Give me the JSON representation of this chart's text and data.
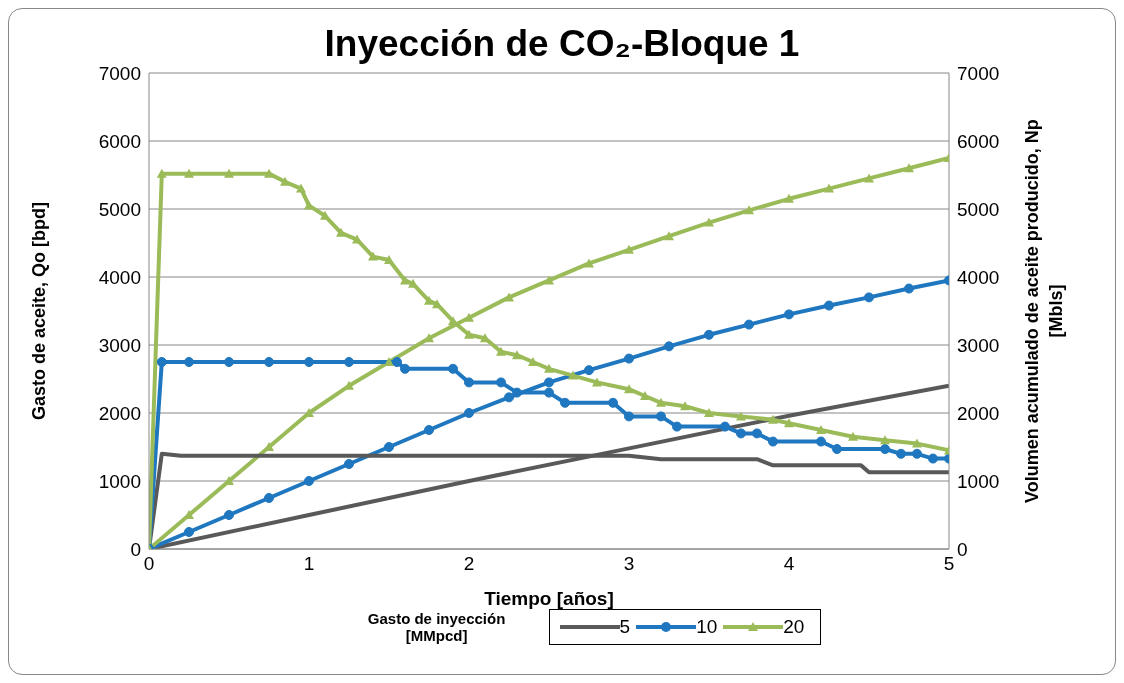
{
  "chart_data": {
    "type": "line",
    "title": "Inyección de CO₂-Bloque 1",
    "xlabel": "Tiempo [años]",
    "ylabel": "Gasto de aceite, Qo [bpd]",
    "y2label": "Volumen acumulado de aceite producido, Np [Mbls]",
    "legend_title": "Gasto de inyección [MMpcd]",
    "legend": "bottom",
    "grid": "y",
    "xlim": [
      0,
      5
    ],
    "xticks": [
      0,
      1,
      2,
      3,
      4,
      5
    ],
    "ylim": [
      0,
      7000
    ],
    "yticks": [
      0,
      1000,
      2000,
      3000,
      4000,
      5000,
      6000,
      7000
    ],
    "y2lim": [
      0,
      7000
    ],
    "y2ticks": [
      0,
      1000,
      2000,
      3000,
      4000,
      5000,
      6000,
      7000
    ],
    "line_style": "solid",
    "series": [
      {
        "name": "5",
        "color": "#595959",
        "marker": "none",
        "x": [
          0,
          0.08,
          0.2,
          1,
          2,
          3,
          3.2,
          3.8,
          3.9,
          4.45,
          4.5,
          5
        ],
        "values": [
          0,
          1400,
          1370,
          1370,
          1370,
          1370,
          1320,
          1320,
          1230,
          1230,
          1130,
          1130
        ]
      },
      {
        "name": "10",
        "color": "#1f77c0",
        "marker": "circle",
        "x": [
          0,
          0.08,
          0.25,
          0.5,
          0.75,
          1,
          1.25,
          1.55,
          1.6,
          1.9,
          2,
          2.2,
          2.3,
          2.5,
          2.6,
          2.9,
          3,
          3.2,
          3.3,
          3.6,
          3.7,
          3.8,
          3.9,
          4.2,
          4.3,
          4.6,
          4.7,
          4.8,
          4.9,
          5
        ],
        "values": [
          0,
          2750,
          2750,
          2750,
          2750,
          2750,
          2750,
          2750,
          2650,
          2650,
          2450,
          2450,
          2300,
          2300,
          2150,
          2150,
          1950,
          1950,
          1800,
          1800,
          1700,
          1700,
          1580,
          1580,
          1470,
          1470,
          1400,
          1400,
          1330,
          1330
        ]
      },
      {
        "name": "20",
        "color": "#9bbb59",
        "marker": "triangle",
        "x": [
          0,
          0.08,
          0.25,
          0.5,
          0.75,
          0.85,
          0.95,
          1,
          1.1,
          1.2,
          1.3,
          1.4,
          1.5,
          1.6,
          1.65,
          1.75,
          1.8,
          1.9,
          2,
          2.1,
          2.2,
          2.3,
          2.4,
          2.5,
          2.65,
          2.8,
          3,
          3.1,
          3.2,
          3.35,
          3.5,
          3.7,
          3.9,
          4,
          4.2,
          4.4,
          4.6,
          4.8,
          5
        ],
        "values": [
          0,
          5520,
          5520,
          5520,
          5520,
          5400,
          5300,
          5050,
          4900,
          4650,
          4550,
          4300,
          4250,
          3950,
          3900,
          3650,
          3600,
          3350,
          3150,
          3100,
          2900,
          2850,
          2750,
          2650,
          2550,
          2450,
          2350,
          2250,
          2150,
          2100,
          2000,
          1950,
          1900,
          1850,
          1750,
          1650,
          1600,
          1550,
          1450
        ]
      },
      {
        "color": "#595959",
        "marker": "none",
        "axis": "y2",
        "x": [
          0,
          1,
          2,
          3,
          4,
          5
        ],
        "values": [
          0,
          500,
          1000,
          1480,
          1960,
          2400
        ]
      },
      {
        "color": "#1f77c0",
        "marker": "circle",
        "axis": "y2",
        "x": [
          0,
          0.25,
          0.5,
          0.75,
          1,
          1.25,
          1.5,
          1.75,
          2,
          2.25,
          2.5,
          2.75,
          3,
          3.25,
          3.5,
          3.75,
          4,
          4.25,
          4.5,
          4.75,
          5
        ],
        "values": [
          0,
          250,
          500,
          750,
          1000,
          1250,
          1500,
          1750,
          2000,
          2230,
          2450,
          2630,
          2800,
          2980,
          3150,
          3300,
          3450,
          3580,
          3700,
          3830,
          3950
        ]
      },
      {
        "color": "#9bbb59",
        "marker": "triangle",
        "axis": "y2",
        "x": [
          0,
          0.25,
          0.5,
          0.75,
          1,
          1.25,
          1.5,
          1.75,
          2,
          2.25,
          2.5,
          2.75,
          3,
          3.25,
          3.5,
          3.75,
          4,
          4.25,
          4.5,
          4.75,
          5
        ],
        "values": [
          0,
          500,
          1000,
          1500,
          2000,
          2400,
          2750,
          3100,
          3400,
          3700,
          3950,
          4200,
          4400,
          4600,
          4800,
          4980,
          5150,
          5300,
          5450,
          5600,
          5750
        ]
      }
    ]
  }
}
